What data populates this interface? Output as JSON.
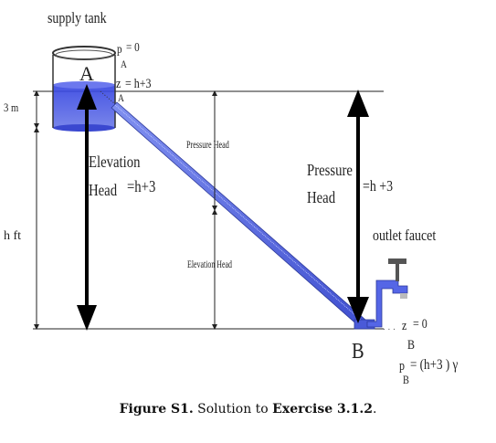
{
  "labels": {
    "supply_tank": "supply tank",
    "pA": "p",
    "pA_sub": "A",
    "pA_eq": "= 0",
    "zA": "z",
    "zA_sub": "A",
    "zA_eq": "= h+3",
    "point_A": "A",
    "three_m": "3 m",
    "h_ft": "h ft",
    "elevation_head_line1": "Elevation",
    "elevation_head_line2": "Head",
    "elevation_head_value": "=h+3",
    "pressure_head_small": "Pressure Head",
    "elevation_head_small": "Elevation Head",
    "pressure_head_line1": "Pressure",
    "pressure_head_line2": "Head",
    "pressure_head_value": "=h +3",
    "outlet_faucet": "outlet faucet",
    "zB": "z",
    "zB_sub": "B",
    "zB_eq": "= 0",
    "point_B": "B",
    "pB": "p",
    "pB_sub": "B",
    "pB_eq": "= (h+3 ) γ"
  },
  "caption": {
    "label": "Figure S1.",
    "text_before": " Solution to ",
    "exercise": "Exercise 3.1.2",
    "text_after": "."
  },
  "colors": {
    "water": "#4a5ad8",
    "pipe": "#5a6ae0",
    "arrow": "#000000",
    "line": "#222222"
  }
}
